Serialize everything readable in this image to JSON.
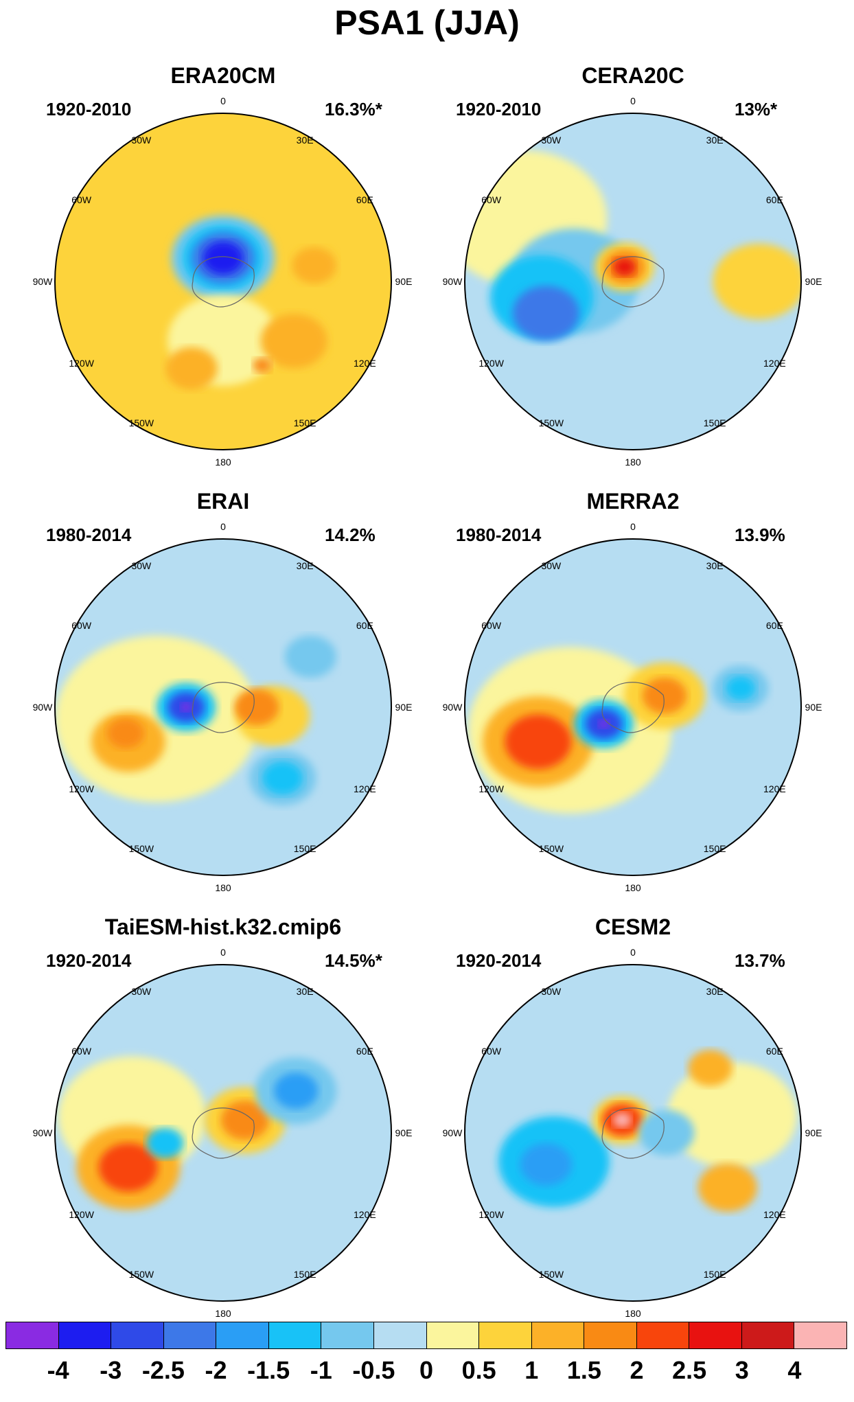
{
  "title": "PSA1 (JJA)",
  "lon_labels": [
    "0",
    "30E",
    "60E",
    "90E",
    "120E",
    "150E",
    "180",
    "150W",
    "120W",
    "90W",
    "60W",
    "30W"
  ],
  "panels": [
    {
      "name": "ERA20CM",
      "period": "1920-2010",
      "variance": "16.3%*",
      "bg": "#fdd33b",
      "blobs": [
        {
          "lon": 0,
          "r": 0.14,
          "rad": 0.28,
          "level": -1
        },
        {
          "lon": 0,
          "r": 0.14,
          "rad": 0.22,
          "level": -1.5
        },
        {
          "lon": 0,
          "r": 0.14,
          "rad": 0.17,
          "level": -2.5
        },
        {
          "lon": 0,
          "r": 0.14,
          "rad": 0.11,
          "level": -3.5
        },
        {
          "lon": 180,
          "r": 0.35,
          "rad": 0.3,
          "level": 0.5
        },
        {
          "lon": 130,
          "r": 0.55,
          "rad": 0.18,
          "level": 1.5
        },
        {
          "lon": 80,
          "r": 0.55,
          "rad": 0.12,
          "level": 1.5
        },
        {
          "lon": 200,
          "r": 0.55,
          "rad": 0.14,
          "level": 1.5
        },
        {
          "lon": 155,
          "r": 0.55,
          "rad": 0.05,
          "level": 2
        }
      ]
    },
    {
      "name": "CERA20C",
      "period": "1920-2010",
      "variance": "13%*",
      "bg": "#b6ddf2",
      "blobs": [
        {
          "lon": 300,
          "r": 0.75,
          "rad": 0.45,
          "level": 0.5
        },
        {
          "lon": 90,
          "r": 0.75,
          "rad": 0.25,
          "level": 1
        },
        {
          "lon": 270,
          "r": 0.35,
          "rad": 0.35,
          "level": -1
        },
        {
          "lon": 260,
          "r": 0.55,
          "rad": 0.28,
          "level": -1.5
        },
        {
          "lon": 250,
          "r": 0.55,
          "rad": 0.18,
          "level": -2.5
        },
        {
          "lon": 330,
          "r": 0.1,
          "rad": 0.16,
          "level": 1
        },
        {
          "lon": 330,
          "r": 0.1,
          "rad": 0.11,
          "level": 2
        },
        {
          "lon": 330,
          "r": 0.1,
          "rad": 0.06,
          "level": 3
        }
      ]
    },
    {
      "name": "ERAI",
      "period": "1980-2014",
      "variance": "14.2%",
      "bg": "#b6ddf2",
      "blobs": [
        {
          "lon": 260,
          "r": 0.4,
          "rad": 0.55,
          "level": 0.5
        },
        {
          "lon": 100,
          "r": 0.3,
          "rad": 0.2,
          "level": 1
        },
        {
          "lon": 90,
          "r": 0.2,
          "rad": 0.12,
          "level": 2
        },
        {
          "lon": 250,
          "r": 0.6,
          "rad": 0.2,
          "level": 1.5
        },
        {
          "lon": 255,
          "r": 0.6,
          "rad": 0.1,
          "level": 2
        },
        {
          "lon": 270,
          "r": 0.22,
          "rad": 0.16,
          "level": -1.5
        },
        {
          "lon": 270,
          "r": 0.22,
          "rad": 0.1,
          "level": -3
        },
        {
          "lon": 270,
          "r": 0.22,
          "rad": 0.03,
          "level": -4
        },
        {
          "lon": 140,
          "r": 0.55,
          "rad": 0.18,
          "level": -1
        },
        {
          "lon": 140,
          "r": 0.55,
          "rad": 0.11,
          "level": -1.5
        },
        {
          "lon": 60,
          "r": 0.6,
          "rad": 0.14,
          "level": -1
        }
      ]
    },
    {
      "name": "MERRA2",
      "period": "1980-2014",
      "variance": "13.9%",
      "bg": "#b6ddf2",
      "blobs": [
        {
          "lon": 250,
          "r": 0.4,
          "rad": 0.55,
          "level": 0.5
        },
        {
          "lon": 250,
          "r": 0.6,
          "rad": 0.3,
          "level": 1.5
        },
        {
          "lon": 250,
          "r": 0.6,
          "rad": 0.18,
          "level": 2.5
        },
        {
          "lon": 70,
          "r": 0.2,
          "rad": 0.22,
          "level": 1
        },
        {
          "lon": 70,
          "r": 0.2,
          "rad": 0.12,
          "level": 2
        },
        {
          "lon": 240,
          "r": 0.2,
          "rad": 0.16,
          "level": -1.5
        },
        {
          "lon": 240,
          "r": 0.2,
          "rad": 0.1,
          "level": -3
        },
        {
          "lon": 240,
          "r": 0.2,
          "rad": 0.03,
          "level": -4
        },
        {
          "lon": 80,
          "r": 0.65,
          "rad": 0.15,
          "level": -1
        },
        {
          "lon": 80,
          "r": 0.65,
          "rad": 0.08,
          "level": -1.5
        }
      ]
    },
    {
      "name": "TaiESM-hist.k32.cmip6",
      "period": "1920-2014",
      "variance": "14.5%*",
      "bg": "#b6ddf2",
      "blobs": [
        {
          "lon": 280,
          "r": 0.55,
          "rad": 0.4,
          "level": 0.5
        },
        {
          "lon": 250,
          "r": 0.6,
          "rad": 0.28,
          "level": 1.5
        },
        {
          "lon": 250,
          "r": 0.6,
          "rad": 0.16,
          "level": 2.5
        },
        {
          "lon": 60,
          "r": 0.15,
          "rad": 0.22,
          "level": 1
        },
        {
          "lon": 60,
          "r": 0.15,
          "rad": 0.13,
          "level": 2
        },
        {
          "lon": 60,
          "r": 0.5,
          "rad": 0.22,
          "level": -1
        },
        {
          "lon": 60,
          "r": 0.5,
          "rad": 0.12,
          "level": -2
        },
        {
          "lon": 260,
          "r": 0.35,
          "rad": 0.1,
          "level": -1.5
        }
      ]
    },
    {
      "name": "CESM2",
      "period": "1920-2014",
      "variance": "13.7%",
      "bg": "#b6ddf2",
      "blobs": [
        {
          "lon": 80,
          "r": 0.6,
          "rad": 0.35,
          "level": 0.5
        },
        {
          "lon": 120,
          "r": 0.65,
          "rad": 0.16,
          "level": 1.5
        },
        {
          "lon": 50,
          "r": 0.6,
          "rad": 0.12,
          "level": 1.5
        },
        {
          "lon": 250,
          "r": 0.5,
          "rad": 0.3,
          "level": -1.5
        },
        {
          "lon": 250,
          "r": 0.55,
          "rad": 0.14,
          "level": -2
        },
        {
          "lon": 320,
          "r": 0.1,
          "rad": 0.16,
          "level": 1
        },
        {
          "lon": 320,
          "r": 0.1,
          "rad": 0.11,
          "level": 2.5
        },
        {
          "lon": 320,
          "r": 0.1,
          "rad": 0.05,
          "level": 4
        },
        {
          "lon": 90,
          "r": 0.2,
          "rad": 0.15,
          "level": -1
        }
      ]
    }
  ],
  "colorbar": {
    "labels": [
      "-4",
      "-3",
      "-2.5",
      "-2",
      "-1.5",
      "-1",
      "-0.5",
      "0",
      "0.5",
      "1",
      "1.5",
      "2",
      "2.5",
      "3",
      "4"
    ],
    "colors": [
      "#8a2be2",
      "#1d1df0",
      "#2f4ae8",
      "#3d78e8",
      "#2a9ef5",
      "#18c2f7",
      "#75c8ee",
      "#b6ddf2",
      "#fbf59d",
      "#fdd33b",
      "#fcb128",
      "#f98a14",
      "#f8450c",
      "#e81210",
      "#cd1a1a",
      "#fbb4b4"
    ]
  }
}
